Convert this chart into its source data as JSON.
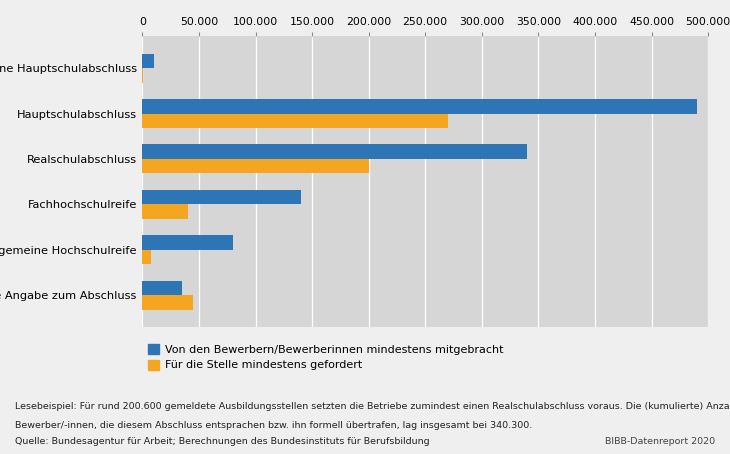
{
  "categories": [
    "Ohne Hauptschulabschluss",
    "Hauptschulabschluss",
    "Realschulabschluss",
    "Fachhochschulreife",
    "Allgemeine Hochschulreife",
    "Keine Angabe zum Abschluss"
  ],
  "blue_values": [
    10000,
    490000,
    340000,
    140000,
    80000,
    35000
  ],
  "orange_values": [
    500,
    270000,
    200000,
    40000,
    8000,
    45000
  ],
  "blue_color": "#2E75B6",
  "orange_color": "#F4A620",
  "background_color": "#D6D6D6",
  "fig_background": "#EFEFEF",
  "xlim": [
    0,
    500000
  ],
  "xticks": [
    0,
    50000,
    100000,
    150000,
    200000,
    250000,
    300000,
    350000,
    400000,
    450000,
    500000
  ],
  "xtick_labels": [
    "0",
    "50.000",
    "100.000",
    "150.000",
    "200.000",
    "250.000",
    "300.000",
    "350.000",
    "400.000",
    "450.000",
    "500.000"
  ],
  "legend_blue": "Von den Bewerbern/Bewerberinnen mindestens mitgebracht",
  "legend_orange": "Für die Stelle mindestens gefordert",
  "footnote_line1": "Lesebeispiel: Für rund 200.600 gemeldete Ausbildungsstellen setzten die Betriebe zumindest einen Realschulabschluss voraus. Die (kumulierte) Anzahl der",
  "footnote_line2": "Bewerber/-innen, die diesem Abschluss entsprachen bzw. ihn formell übertrafen, lag insgesamt bei 340.300.",
  "source": "Quelle: Bundesagentur für Arbeit; Berechnungen des Bundesinstituts für Berufsbildung",
  "source_right": "BIBB-Datenreport 2020"
}
